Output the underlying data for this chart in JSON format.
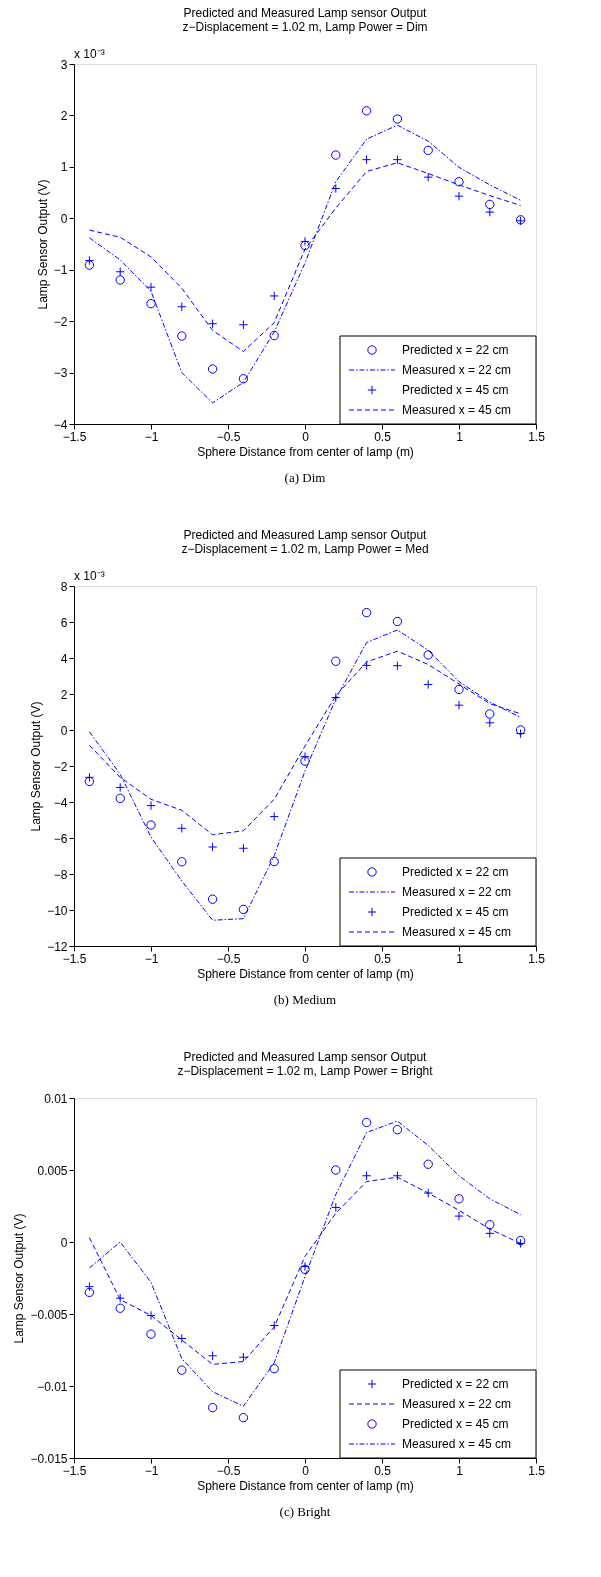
{
  "chart_data": [
    {
      "type": "line",
      "title": "Predicted and Measured Lamp sensor Output",
      "subtitle": "z−Displacement = 1.02 m, Lamp Power = Dim",
      "xlabel": "Sphere Distance from center of lamp (m)",
      "ylabel": "Lamp Sensor Output (V)",
      "x": [
        -1.4,
        -1.2,
        -1.0,
        -0.8,
        -0.6,
        -0.4,
        -0.2,
        0.0,
        0.2,
        0.4,
        0.6,
        0.8,
        1.0,
        1.2,
        1.4
      ],
      "xlim": [
        -1.5,
        1.5
      ],
      "xticks": [
        -1.5,
        -1,
        -0.5,
        0,
        0.5,
        1,
        1.5
      ],
      "ylim": [
        -4,
        3
      ],
      "yticks": [
        -4,
        -3,
        -2,
        -1,
        0,
        1,
        2,
        3
      ],
      "grid": false,
      "legend": "bottom right",
      "annotations": [
        "x 10⁻³",
        "(a)  Dim"
      ],
      "series": [
        {
          "name": "Predicted x = 22 cm",
          "type": "scatter",
          "marker": "circle",
          "color": "#0000ff",
          "values": [
            -0.91,
            -1.2,
            -1.66,
            -2.29,
            -2.93,
            -3.12,
            -2.28,
            -0.53,
            1.23,
            2.09,
            1.93,
            1.32,
            0.71,
            0.27,
            -0.03
          ]
        },
        {
          "name": "Measured x = 22 cm",
          "line_style": "dashdot",
          "color": "#0000ff",
          "values": [
            -0.38,
            -0.81,
            -1.42,
            -3.0,
            -3.59,
            -3.19,
            -2.21,
            -0.87,
            0.71,
            1.54,
            1.81,
            1.5,
            0.99,
            0.65,
            0.35
          ]
        },
        {
          "name": "Predicted x = 45 cm",
          "type": "scatter",
          "marker": "cross",
          "color": "#0000ff",
          "values": [
            -0.82,
            -1.04,
            -1.34,
            -1.72,
            -2.05,
            -2.07,
            -1.51,
            -0.45,
            0.58,
            1.14,
            1.14,
            0.8,
            0.43,
            0.12,
            -0.05
          ]
        },
        {
          "name": "Measured x = 45 cm",
          "line_style": "dashed",
          "color": "#0000ff",
          "values": [
            -0.23,
            -0.37,
            -0.75,
            -1.36,
            -2.18,
            -2.59,
            -2.03,
            -0.6,
            0.2,
            0.91,
            1.08,
            0.87,
            0.65,
            0.44,
            0.25
          ]
        }
      ]
    },
    {
      "type": "line",
      "title": "Predicted and Measured Lamp sensor Output",
      "subtitle": "z−Displacement = 1.02 m, Lamp Power = Med",
      "xlabel": "Sphere Distance from center of lamp (m)",
      "ylabel": "Lamp Sensor Output (V)",
      "x": [
        -1.4,
        -1.2,
        -1.0,
        -0.8,
        -0.6,
        -0.4,
        -0.2,
        0.0,
        0.2,
        0.4,
        0.6,
        0.8,
        1.0,
        1.2,
        1.4
      ],
      "xlim": [
        -1.5,
        1.5
      ],
      "xticks": [
        -1.5,
        -1,
        -0.5,
        0,
        0.5,
        1,
        1.5
      ],
      "ylim": [
        -12,
        8
      ],
      "yticks": [
        -12,
        -10,
        -8,
        -6,
        -4,
        -2,
        0,
        2,
        4,
        6,
        8
      ],
      "grid": false,
      "legend": "bottom right",
      "annotations": [
        "x 10⁻³",
        "(b)  Medium"
      ],
      "series": [
        {
          "name": "Predicted x = 22 cm",
          "type": "scatter",
          "marker": "circle",
          "color": "#0000ff",
          "values": [
            -2.86,
            -3.8,
            -5.28,
            -7.32,
            -9.4,
            -9.97,
            -7.31,
            -1.73,
            3.82,
            6.52,
            6.03,
            4.17,
            2.25,
            0.89,
            0.0
          ]
        },
        {
          "name": "Measured x = 22 cm",
          "line_style": "dashdot",
          "color": "#0000ff",
          "values": [
            -0.1,
            -2.46,
            -5.95,
            -8.39,
            -10.57,
            -10.48,
            -6.99,
            -2.28,
            1.73,
            4.86,
            5.56,
            4.43,
            2.69,
            1.55,
            0.7
          ]
        },
        {
          "name": "Predicted x = 45 cm",
          "type": "scatter",
          "marker": "cross",
          "color": "#0000ff",
          "values": [
            -2.63,
            -3.19,
            -4.2,
            -5.46,
            -6.5,
            -6.57,
            -4.81,
            -1.48,
            1.8,
            3.59,
            3.57,
            2.53,
            1.38,
            0.4,
            -0.2
          ]
        },
        {
          "name": "Measured x = 45 cm",
          "line_style": "dashed",
          "color": "#0000ff",
          "values": [
            -0.85,
            -2.63,
            -3.85,
            -4.46,
            -5.82,
            -5.6,
            -3.85,
            -0.89,
            1.9,
            3.78,
            4.38,
            3.64,
            2.56,
            1.46,
            0.9
          ]
        }
      ]
    },
    {
      "type": "line",
      "title": "Predicted and Measured Lamp sensor Output",
      "subtitle": "z−Displacement = 1.02 m, Lamp Power = Bright",
      "xlabel": "Sphere Distance from center of lamp (m)",
      "ylabel": "Lamp Sensor Output (V)",
      "x": [
        -1.4,
        -1.2,
        -1.0,
        -0.8,
        -0.6,
        -0.4,
        -0.2,
        0.0,
        0.2,
        0.4,
        0.6,
        0.8,
        1.0,
        1.2,
        1.4
      ],
      "xlim": [
        -1.5,
        1.5
      ],
      "xticks": [
        -1.5,
        -1,
        -0.5,
        0,
        0.5,
        1,
        1.5
      ],
      "ylim": [
        -0.015,
        0.01
      ],
      "yticks": [
        -0.015,
        -0.01,
        -0.005,
        0,
        0.005,
        0.01
      ],
      "grid": false,
      "legend": "bottom right",
      "annotations": [
        "(c)  Bright"
      ],
      "series": [
        {
          "name": "Predicted x = 22 cm",
          "type": "scatter",
          "marker": "cross",
          "color": "#0000ff",
          "values": [
            -0.0031,
            -0.0039,
            -0.0051,
            -0.0067,
            -0.0079,
            -0.008,
            -0.0058,
            -0.0017,
            0.0024,
            0.0046,
            0.0046,
            0.0034,
            0.0018,
            0.0006,
            -0.0001
          ]
        },
        {
          "name": "Measured x = 22 cm",
          "line_style": "dashed",
          "color": "#0000ff",
          "values": [
            0.0003,
            -0.004,
            -0.0051,
            -0.0068,
            -0.0085,
            -0.0083,
            -0.0059,
            -0.001,
            0.002,
            0.0042,
            0.0045,
            0.0034,
            0.0022,
            0.0009,
            -0.0001
          ]
        },
        {
          "name": "Predicted x = 45 cm",
          "type": "scatter",
          "marker": "circle",
          "color": "#0000ff",
          "values": [
            -0.0035,
            -0.0046,
            -0.0064,
            -0.0089,
            -0.0115,
            -0.0122,
            -0.0088,
            -0.0019,
            0.005,
            0.0083,
            0.0078,
            0.0054,
            0.003,
            0.0012,
            0.0001
          ]
        },
        {
          "name": "Measured x = 45 cm",
          "line_style": "dashdot",
          "color": "#0000ff",
          "values": [
            -0.0018,
            0.0,
            -0.0028,
            -0.0081,
            -0.0104,
            -0.0114,
            -0.0084,
            -0.0024,
            0.0033,
            0.0076,
            0.0084,
            0.0067,
            0.0046,
            0.003,
            0.0019
          ]
        }
      ]
    }
  ]
}
